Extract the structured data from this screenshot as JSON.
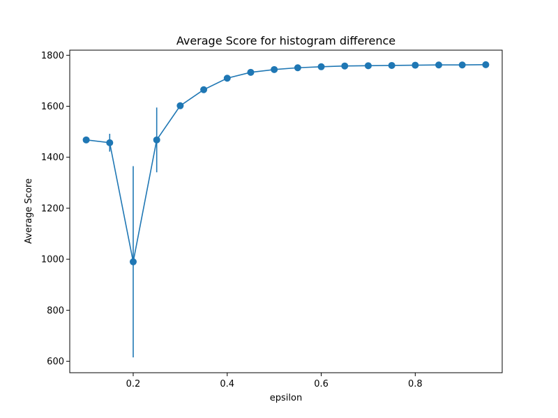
{
  "chart_data": {
    "type": "line",
    "title": "Average Score for histogram difference",
    "xlabel": "epsilon",
    "ylabel": "Average Score",
    "xlim": [
      0.065,
      0.985
    ],
    "ylim": [
      555,
      1820
    ],
    "grid": false,
    "x_ticks": [
      0.2,
      0.4,
      0.6,
      0.8
    ],
    "x_tick_labels": [
      "0.2",
      "0.4",
      "0.6",
      "0.8"
    ],
    "y_ticks": [
      600,
      800,
      1000,
      1200,
      1400,
      1600,
      1800
    ],
    "y_tick_labels": [
      "600",
      "800",
      "1000",
      "1200",
      "1400",
      "1600",
      "1800"
    ],
    "series": [
      {
        "color": "#1f77b4",
        "x": [
          0.1,
          0.15,
          0.2,
          0.25,
          0.3,
          0.35,
          0.4,
          0.45,
          0.5,
          0.55,
          0.6,
          0.65,
          0.7,
          0.75,
          0.8,
          0.85,
          0.9,
          0.95
        ],
        "y": [
          1468,
          1457,
          990,
          1468,
          1602,
          1665,
          1710,
          1733,
          1744,
          1751,
          1755,
          1758,
          1759,
          1760,
          1761,
          1762,
          1762,
          1763
        ],
        "yerr": [
          10,
          35,
          375,
          127,
          4,
          4,
          3,
          3,
          2,
          2,
          2,
          2,
          2,
          1,
          1,
          1,
          1,
          1
        ]
      }
    ]
  }
}
